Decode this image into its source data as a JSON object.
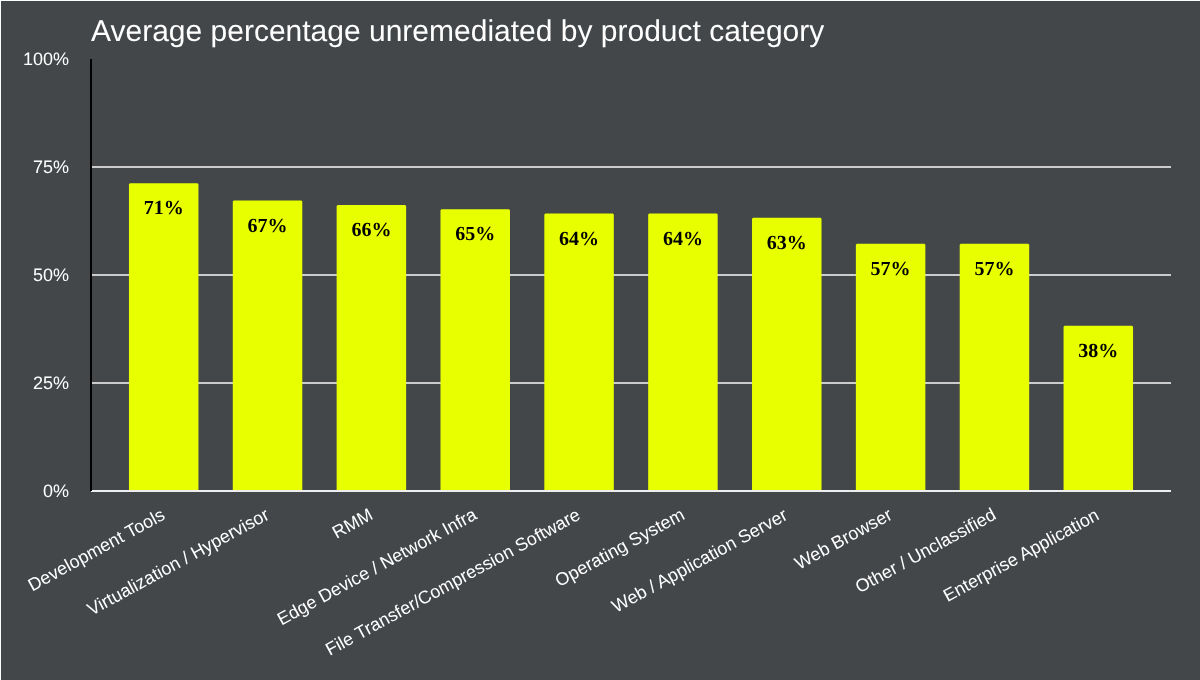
{
  "chart_data": {
    "type": "bar",
    "title": "Average percentage unremediated by product category",
    "categories": [
      "Development Tools",
      "Virtualization / Hypervisor",
      "RMM",
      "Edge Device / Network Infra",
      "File Transfer/Compression Software",
      "Operating System",
      "Web / Application Server",
      "Web Browser",
      "Other / Unclassified",
      "Enterprise Application"
    ],
    "values": [
      71,
      67,
      66,
      65,
      64,
      64,
      63,
      57,
      57,
      38
    ],
    "value_labels": [
      "71%",
      "67%",
      "66%",
      "65%",
      "64%",
      "64%",
      "63%",
      "57%",
      "57%",
      "38%"
    ],
    "color": "#e8ff00",
    "ylim": [
      0,
      100
    ],
    "yticks": [
      {
        "value": 0,
        "label": "0%"
      },
      {
        "value": 25,
        "label": "25%"
      },
      {
        "value": 50,
        "label": "50%"
      },
      {
        "value": 75,
        "label": "75%"
      },
      {
        "value": 100,
        "label": "100%"
      }
    ],
    "grid": "y"
  }
}
